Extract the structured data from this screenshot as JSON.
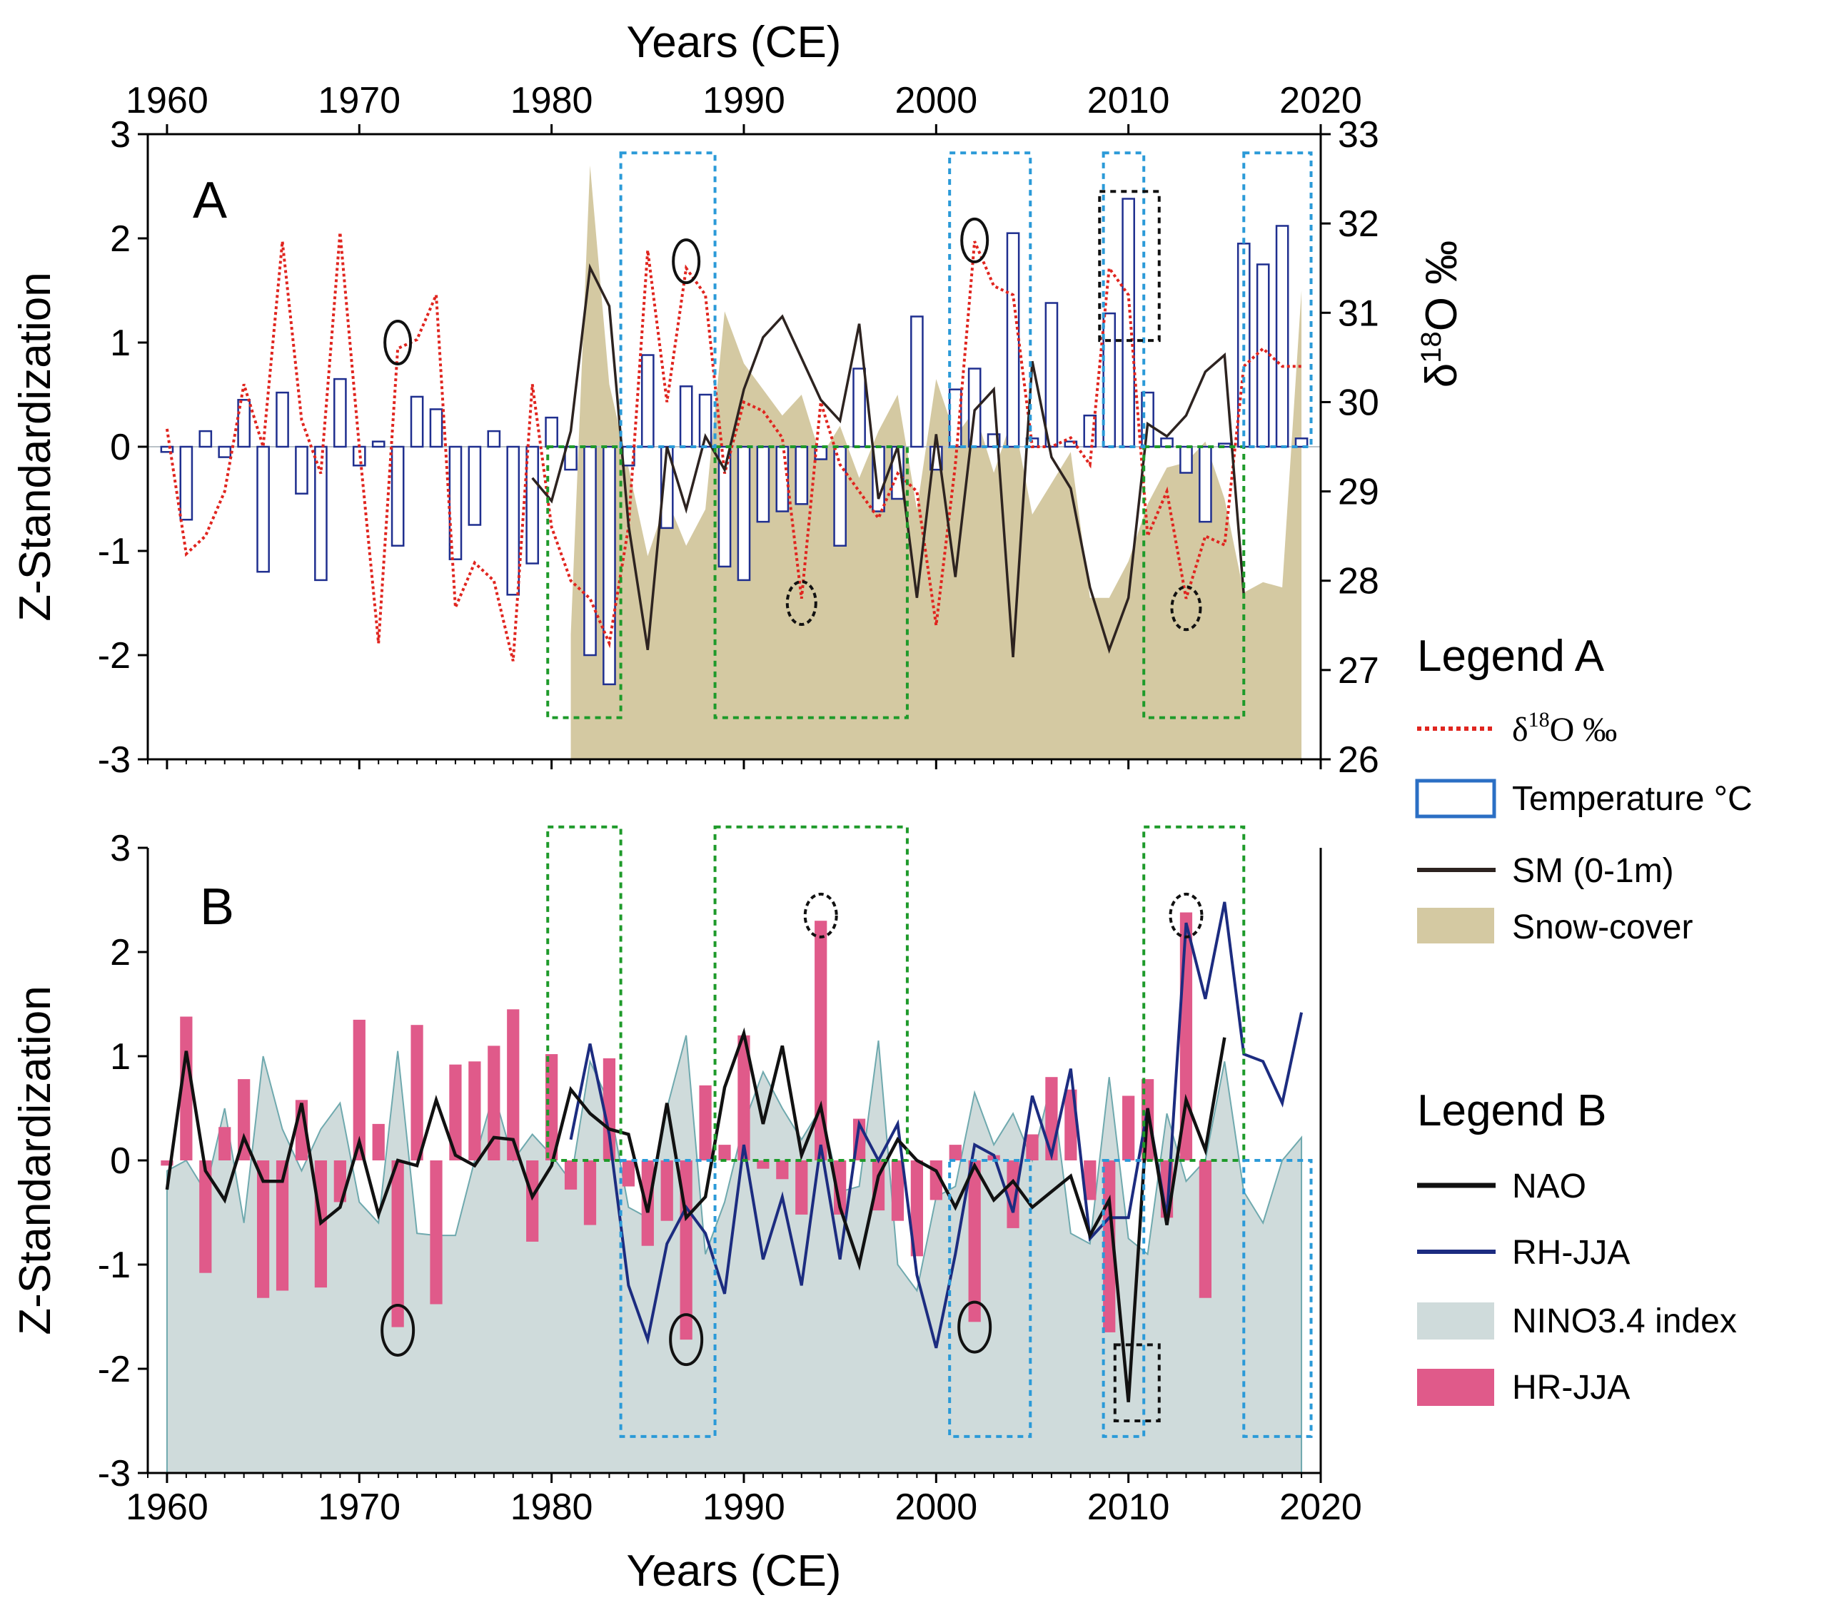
{
  "colors": {
    "d18o": "#e0251f",
    "temperature_edge": "#1f2f8f",
    "sm": "#2d2320",
    "snow": "#d4c9a2",
    "nao": "#111111",
    "rh": "#1c2c80",
    "nino_fill": "#cfdbdb",
    "nino_edge": "#6fa9ae",
    "hr": "#e05a8a",
    "green_box": "#1e9a2a",
    "blue_box": "#2b9ad8",
    "black_box": "#111111"
  },
  "chart_data": [
    {
      "id": "A",
      "type": "composite (bar + line + area)",
      "panel_label": "A",
      "title_top": "Years (CE)",
      "xlabel": "Years (CE)",
      "ylabel": "Z-Standardization",
      "y2label": "δ18O ‰",
      "xlim": [
        1959,
        2020
      ],
      "ylim": [
        -3,
        3
      ],
      "y2lim": [
        26,
        33
      ],
      "xticks": [
        "1960",
        "1970",
        "1980",
        "1990",
        "2000",
        "2010",
        "2020"
      ],
      "yticks": [
        "3",
        "2",
        "1",
        "0",
        "-1",
        "-2",
        "-3"
      ],
      "y2ticks": [
        "33",
        "32",
        "31",
        "30",
        "29",
        "28",
        "27",
        "26"
      ],
      "legend": {
        "title": "Legend A",
        "items": [
          "δ18O ‰",
          "Temperature °C",
          "SM (0-1m)",
          "Snow-cover"
        ]
      },
      "series": [
        {
          "name": "Temperature °C",
          "kind": "bar",
          "x": [
            1960,
            1961,
            1962,
            1963,
            1964,
            1965,
            1966,
            1967,
            1968,
            1969,
            1970,
            1971,
            1972,
            1973,
            1974,
            1975,
            1976,
            1977,
            1978,
            1979,
            1980,
            1981,
            1982,
            1983,
            1984,
            1985,
            1986,
            1987,
            1988,
            1989,
            1990,
            1991,
            1992,
            1993,
            1994,
            1995,
            1996,
            1997,
            1998,
            1999,
            2000,
            2001,
            2002,
            2003,
            2004,
            2005,
            2006,
            2007,
            2008,
            2009,
            2010,
            2011,
            2012,
            2013,
            2014,
            2015,
            2016,
            2017,
            2018,
            2019
          ],
          "values": [
            -0.05,
            -0.7,
            0.15,
            -0.1,
            0.45,
            -1.2,
            0.52,
            -0.45,
            -1.28,
            0.65,
            -0.18,
            0.05,
            -0.95,
            0.48,
            0.36,
            -1.08,
            -0.75,
            0.15,
            -1.42,
            -1.12,
            0.28,
            -0.22,
            -2.0,
            -2.28,
            -0.18,
            0.88,
            -0.78,
            0.58,
            0.5,
            -1.15,
            -1.28,
            -0.72,
            -0.62,
            -0.55,
            -0.12,
            -0.95,
            0.75,
            -0.62,
            -0.5,
            1.25,
            -0.22,
            0.55,
            0.75,
            0.12,
            2.05,
            0.08,
            1.38,
            0.05,
            0.3,
            1.28,
            2.38,
            0.52,
            0.08,
            -0.25,
            -0.72,
            0.03,
            1.95,
            1.75,
            2.12,
            0.08
          ]
        },
        {
          "name": "δ18O ‰",
          "kind": "line",
          "x": [
            1960,
            1961,
            1962,
            1963,
            1964,
            1965,
            1966,
            1967,
            1968,
            1969,
            1970,
            1971,
            1972,
            1973,
            1974,
            1975,
            1976,
            1977,
            1978,
            1979,
            1980,
            1981,
            1982,
            1983,
            1984,
            1985,
            1986,
            1987,
            1988,
            1989,
            1990,
            1991,
            1992,
            1993,
            1994,
            1995,
            1996,
            1997,
            1998,
            1999,
            2000,
            2001,
            2002,
            2003,
            2004,
            2005,
            2006,
            2007,
            2008,
            2009,
            2010,
            2011,
            2012,
            2013,
            2014,
            2015,
            2016,
            2017,
            2018,
            2019
          ],
          "values": [
            29.7,
            28.3,
            28.5,
            29.0,
            30.2,
            29.5,
            31.8,
            29.8,
            29.2,
            31.9,
            29.5,
            27.3,
            30.6,
            30.7,
            31.2,
            27.7,
            28.2,
            28.0,
            27.1,
            30.2,
            28.6,
            28.0,
            27.8,
            27.3,
            28.6,
            31.7,
            30.0,
            31.5,
            31.2,
            29.2,
            30.0,
            29.9,
            29.6,
            27.8,
            30.0,
            29.3,
            29.0,
            28.7,
            29.2,
            29.0,
            27.5,
            29.3,
            31.8,
            31.3,
            31.2,
            29.5,
            29.5,
            29.6,
            29.3,
            31.5,
            31.2,
            28.5,
            29.0,
            27.8,
            28.5,
            28.4,
            30.4,
            30.6,
            30.4,
            30.4
          ]
        },
        {
          "name": "SM (0-1m)",
          "kind": "line",
          "x": [
            1979,
            1980,
            1981,
            1982,
            1983,
            1984,
            1985,
            1986,
            1987,
            1988,
            1989,
            1990,
            1991,
            1992,
            1993,
            1994,
            1995,
            1996,
            1997,
            1998,
            1999,
            2000,
            2001,
            2002,
            2003,
            2004,
            2005,
            2006,
            2007,
            2008,
            2009,
            2010,
            2011,
            2012,
            2013,
            2014,
            2015,
            2016
          ],
          "values": [
            -0.3,
            -0.52,
            0.15,
            1.72,
            1.35,
            -0.75,
            -1.95,
            0.0,
            -0.6,
            0.1,
            -0.22,
            0.55,
            1.05,
            1.25,
            0.85,
            0.45,
            0.25,
            1.18,
            -0.5,
            0.0,
            -1.45,
            0.12,
            -1.25,
            0.35,
            0.55,
            -2.02,
            0.82,
            -0.1,
            -0.4,
            -1.35,
            -1.95,
            -1.45,
            0.22,
            0.1,
            0.3,
            0.72,
            0.88,
            -1.42
          ]
        },
        {
          "name": "Snow-cover",
          "kind": "area",
          "x": [
            1981,
            1982,
            1983,
            1984,
            1985,
            1986,
            1987,
            1988,
            1989,
            1990,
            1991,
            1992,
            1993,
            1994,
            1995,
            1996,
            1997,
            1998,
            1999,
            2000,
            2001,
            2002,
            2003,
            2004,
            2005,
            2006,
            2007,
            2008,
            2009,
            2010,
            2011,
            2012,
            2013,
            2014,
            2015,
            2016,
            2017,
            2018,
            2019
          ],
          "values": [
            -1.8,
            2.7,
            0.6,
            -0.2,
            -1.05,
            -0.5,
            -0.95,
            -0.6,
            1.3,
            0.8,
            0.55,
            0.3,
            0.5,
            -0.1,
            0.2,
            -0.3,
            0.15,
            0.5,
            -0.6,
            0.65,
            0.1,
            0.35,
            -0.25,
            0.3,
            -0.65,
            -0.35,
            -0.05,
            -1.45,
            -1.45,
            -1.1,
            -0.55,
            -0.2,
            -0.15,
            0.05,
            -0.5,
            -1.4,
            -1.3,
            -1.35,
            1.5
          ]
        }
      ],
      "annotations": {
        "solid_ellipses_at_year": [
          1972,
          1987,
          2002
        ],
        "dashed_ellipses_at_year": [
          1993,
          2013
        ],
        "dashed_box_year_ranges": {
          "green": [
            [
              1979.8,
              1983.6
            ],
            [
              1988.5,
              1998.5
            ],
            [
              2010.8,
              2016.0
            ]
          ],
          "blue": [
            [
              1983.6,
              1988.5
            ],
            [
              2000.7,
              2004.9
            ],
            [
              2008.7,
              2010.8
            ],
            [
              2016.0,
              2019.5
            ]
          ],
          "black": [
            [
              2008.5,
              2011.6
            ]
          ]
        }
      }
    },
    {
      "id": "B",
      "type": "composite (bar + line + area)",
      "panel_label": "B",
      "xlabel": "Years (CE)",
      "ylabel": "Z-Standardization",
      "xlim": [
        1959,
        2020
      ],
      "ylim": [
        -3,
        3
      ],
      "xticks": [
        "1960",
        "1970",
        "1980",
        "1990",
        "2000",
        "2010",
        "2020"
      ],
      "yticks": [
        "3",
        "2",
        "1",
        "0",
        "-1",
        "-2",
        "-3"
      ],
      "legend": {
        "title": "Legend B",
        "items": [
          "NAO",
          "RH-JJA",
          "NINO3.4 index",
          "HR-JJA"
        ]
      },
      "series": [
        {
          "name": "NINO3.4 index",
          "kind": "area",
          "x": [
            1960,
            1961,
            1962,
            1963,
            1964,
            1965,
            1966,
            1967,
            1968,
            1969,
            1970,
            1971,
            1972,
            1973,
            1974,
            1975,
            1976,
            1977,
            1978,
            1979,
            1980,
            1981,
            1982,
            1983,
            1984,
            1985,
            1986,
            1987,
            1988,
            1989,
            1990,
            1991,
            1992,
            1993,
            1994,
            1995,
            1996,
            1997,
            1998,
            1999,
            2000,
            2001,
            2002,
            2003,
            2004,
            2005,
            2006,
            2007,
            2008,
            2009,
            2010,
            2011,
            2012,
            2013,
            2014,
            2015,
            2016,
            2017,
            2018,
            2019
          ],
          "values": [
            -0.1,
            0.0,
            -0.3,
            0.5,
            -0.6,
            1.0,
            0.3,
            -0.1,
            0.3,
            0.55,
            -0.4,
            -0.6,
            1.05,
            -0.7,
            -0.72,
            -0.72,
            0.0,
            0.65,
            0.0,
            0.25,
            0.05,
            -0.2,
            0.95,
            0.55,
            -0.45,
            -0.55,
            0.5,
            1.2,
            -0.9,
            -0.4,
            0.35,
            0.85,
            0.5,
            0.2,
            0.5,
            -0.3,
            -0.25,
            1.15,
            -1.0,
            -1.25,
            -0.35,
            -0.25,
            0.65,
            0.15,
            0.45,
            0.0,
            0.75,
            -0.7,
            -0.8,
            0.8,
            -0.75,
            -0.9,
            0.45,
            -0.2,
            0.0,
            0.95,
            -0.3,
            -0.6,
            0.0,
            0.22
          ]
        },
        {
          "name": "HR-JJA",
          "kind": "bar",
          "x": [
            1960,
            1961,
            1962,
            1963,
            1964,
            1965,
            1966,
            1967,
            1968,
            1969,
            1970,
            1971,
            1972,
            1973,
            1974,
            1975,
            1976,
            1977,
            1978,
            1979,
            1980,
            1981,
            1982,
            1983,
            1984,
            1985,
            1986,
            1987,
            1988,
            1989,
            1990,
            1991,
            1992,
            1993,
            1994,
            1995,
            1996,
            1997,
            1998,
            1999,
            2000,
            2001,
            2002,
            2003,
            2004,
            2005,
            2006,
            2007,
            2008,
            2009,
            2010,
            2011,
            2012,
            2013,
            2014
          ],
          "values": [
            -0.05,
            1.38,
            -1.08,
            0.32,
            0.78,
            -1.32,
            -1.25,
            0.58,
            -1.22,
            -0.4,
            1.35,
            0.35,
            -1.6,
            1.3,
            -1.38,
            0.92,
            0.95,
            1.1,
            1.45,
            -0.78,
            1.02,
            -0.28,
            -0.62,
            0.98,
            -0.25,
            -0.82,
            -0.58,
            -1.72,
            0.72,
            0.15,
            1.2,
            -0.08,
            -0.18,
            -0.52,
            2.3,
            -0.52,
            0.4,
            -0.48,
            -0.58,
            -0.92,
            -0.38,
            0.15,
            -1.55,
            0.05,
            -0.65,
            0.25,
            0.8,
            0.68,
            -0.38,
            -1.65,
            0.62,
            0.78,
            -0.55,
            2.38,
            -1.32
          ]
        },
        {
          "name": "NAO",
          "kind": "line",
          "x": [
            1960,
            1961,
            1962,
            1963,
            1964,
            1965,
            1966,
            1967,
            1968,
            1969,
            1970,
            1971,
            1972,
            1973,
            1974,
            1975,
            1976,
            1977,
            1978,
            1979,
            1980,
            1981,
            1982,
            1983,
            1984,
            1985,
            1986,
            1987,
            1988,
            1989,
            1990,
            1991,
            1992,
            1993,
            1994,
            1995,
            1996,
            1997,
            1998,
            1999,
            2000,
            2001,
            2002,
            2003,
            2004,
            2005,
            2006,
            2007,
            2008,
            2009,
            2010,
            2011,
            2012,
            2013,
            2014,
            2015
          ],
          "values": [
            -0.28,
            1.05,
            -0.1,
            -0.38,
            0.22,
            -0.2,
            -0.2,
            0.55,
            -0.6,
            -0.45,
            0.18,
            -0.52,
            0.0,
            -0.05,
            0.58,
            0.05,
            -0.05,
            0.22,
            0.2,
            -0.35,
            -0.05,
            0.68,
            0.45,
            0.3,
            0.25,
            -0.5,
            0.55,
            -0.55,
            -0.35,
            0.7,
            1.22,
            0.35,
            1.1,
            0.05,
            0.52,
            -0.45,
            -1.0,
            -0.15,
            0.2,
            0.0,
            -0.1,
            -0.45,
            -0.05,
            -0.38,
            -0.2,
            -0.45,
            -0.3,
            -0.15,
            -0.72,
            -0.38,
            -2.32,
            0.5,
            -0.62,
            0.58,
            0.1,
            1.18
          ]
        },
        {
          "name": "RH-JJA",
          "kind": "line",
          "x": [
            1981,
            1982,
            1983,
            1984,
            1985,
            1986,
            1987,
            1988,
            1989,
            1990,
            1991,
            1992,
            1993,
            1994,
            1995,
            1996,
            1997,
            1998,
            1999,
            2000,
            2001,
            2002,
            2003,
            2004,
            2005,
            2006,
            2007,
            2008,
            2009,
            2010,
            2011,
            2012,
            2013,
            2014,
            2015,
            2016,
            2017,
            2018,
            2019
          ],
          "values": [
            0.2,
            1.12,
            0.25,
            -1.2,
            -1.72,
            -0.8,
            -0.45,
            -0.7,
            -1.28,
            0.15,
            -0.95,
            -0.35,
            -1.2,
            0.15,
            -0.95,
            0.35,
            0.0,
            0.35,
            -1.1,
            -1.8,
            -0.9,
            0.15,
            0.05,
            -0.5,
            0.62,
            0.05,
            0.88,
            -0.75,
            -0.55,
            -0.55,
            0.5,
            -0.55,
            2.28,
            1.55,
            2.48,
            1.02,
            0.95,
            0.55,
            1.42
          ]
        }
      ],
      "annotations": {
        "solid_ellipses_at_year": [
          1972,
          1987,
          2002
        ],
        "dashed_ellipses_at_year": [
          1994,
          2013
        ],
        "dashed_box_year_ranges": {
          "green": [
            [
              1979.8,
              1983.6
            ],
            [
              1988.5,
              1998.5
            ],
            [
              2010.8,
              2016.0
            ]
          ],
          "blue": [
            [
              1983.6,
              1988.5
            ],
            [
              2000.7,
              2004.9
            ],
            [
              2008.7,
              2010.8
            ],
            [
              2016.0,
              2019.5
            ]
          ],
          "black": [
            [
              2009.3,
              2011.6
            ]
          ]
        }
      }
    }
  ]
}
